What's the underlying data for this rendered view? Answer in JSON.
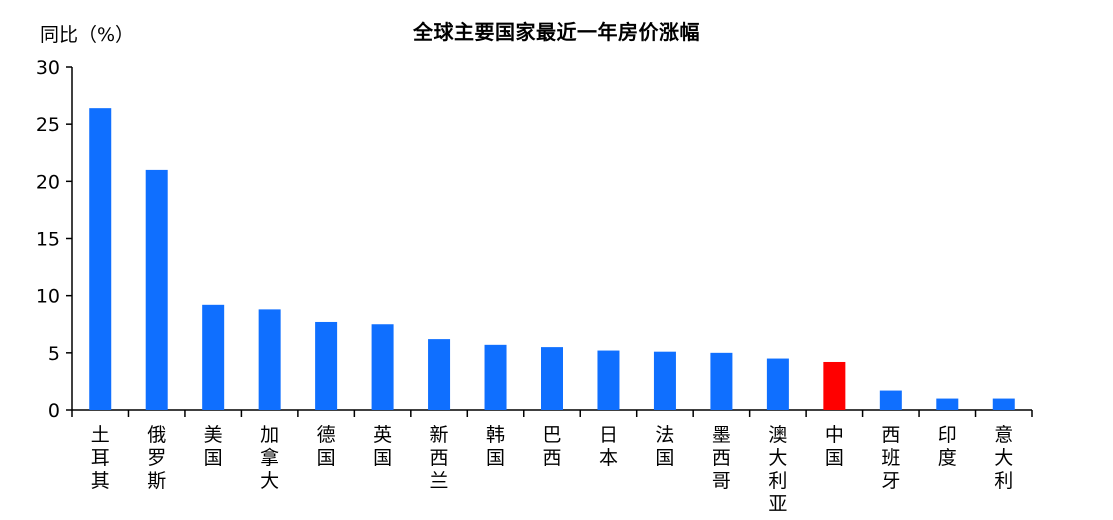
{
  "chart_data": {
    "type": "bar",
    "title": "全球主要国家最近一年房价涨幅",
    "ylabel": "同比（%）",
    "xlabel": "",
    "ylim": [
      0,
      30
    ],
    "yticks": [
      0,
      5,
      10,
      15,
      20,
      25,
      30
    ],
    "grid": false,
    "categories": [
      "土耳其",
      "俄罗斯",
      "美国",
      "加拿大",
      "德国",
      "英国",
      "新西兰",
      "韩国",
      "巴西",
      "日本",
      "法国",
      "墨西哥",
      "澳大利亚",
      "中国",
      "西班牙",
      "印度",
      "意大利"
    ],
    "values": [
      26.4,
      21.0,
      9.2,
      8.8,
      7.7,
      7.5,
      6.2,
      5.7,
      5.5,
      5.2,
      5.1,
      5.0,
      4.5,
      4.2,
      1.7,
      1.0,
      1.0
    ],
    "colors": {
      "default": "#0f6fff",
      "highlight": "#ff0000",
      "highlight_category": "中国"
    }
  }
}
